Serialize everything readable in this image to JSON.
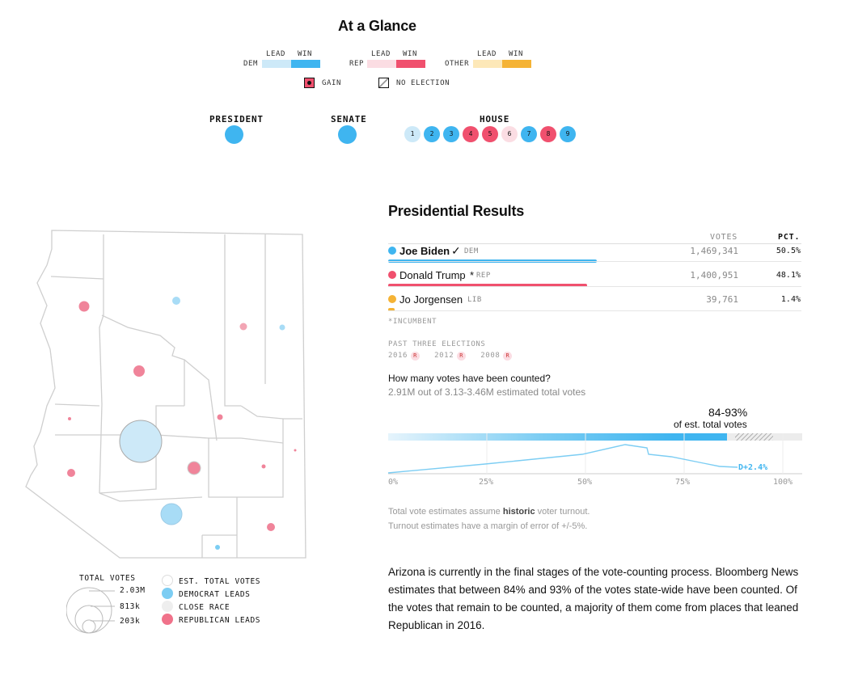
{
  "glance": {
    "title": "At a Glance",
    "legend": {
      "lead": "LEAD",
      "win": "WIN",
      "dem": "DEM",
      "rep": "REP",
      "other": "OTHER",
      "gain": "GAIN",
      "no_election": "NO ELECTION"
    },
    "races": {
      "president": "PRESIDENT",
      "senate": "SENATE",
      "house": "HOUSE"
    },
    "house_seats": [
      {
        "num": "1",
        "status": "dem-lead",
        "color": "#cde9f8"
      },
      {
        "num": "2",
        "status": "dem-win",
        "color": "#3fb5f0"
      },
      {
        "num": "3",
        "status": "dem-win",
        "color": "#3fb5f0"
      },
      {
        "num": "4",
        "status": "rep-win",
        "color": "#f0506e"
      },
      {
        "num": "5",
        "status": "rep-win",
        "color": "#f0506e"
      },
      {
        "num": "6",
        "status": "rep-lead",
        "color": "#fbdde3"
      },
      {
        "num": "7",
        "status": "dem-win",
        "color": "#3fb5f0"
      },
      {
        "num": "8",
        "status": "rep-win",
        "color": "#f0506e"
      },
      {
        "num": "9",
        "status": "dem-win",
        "color": "#3fb5f0"
      }
    ]
  },
  "colors": {
    "dem_lead": "#cde9f8",
    "dem_win": "#3fb5f0",
    "rep_lead": "#fbdde3",
    "rep_win": "#f0506e",
    "other_lead": "#fde8b8",
    "other_win": "#f5b335"
  },
  "results": {
    "title": "Presidential Results",
    "votes_header": "VOTES",
    "pct_header": "PCT.",
    "candidates": [
      {
        "name": "Joe Biden",
        "check": "✓",
        "party": "DEM",
        "votes": "1,469,341",
        "pct": "50.5%",
        "share": 0.505,
        "color": "#3fb5f0"
      },
      {
        "name": "Donald Trump",
        "incumbent_mark": "*",
        "party": "REP",
        "votes": "1,400,951",
        "pct": "48.1%",
        "share": 0.481,
        "color": "#f0506e"
      },
      {
        "name": "Jo Jorgensen",
        "party": "LIB",
        "votes": "39,761",
        "pct": "1.4%",
        "share": 0.014,
        "color": "#f5b335"
      }
    ],
    "incumbent_note": "*INCUMBENT",
    "past_label": "PAST THREE ELECTIONS",
    "past": [
      {
        "year": "2016",
        "winner": "R"
      },
      {
        "year": "2012",
        "winner": "R"
      },
      {
        "year": "2008",
        "winner": "R"
      }
    ]
  },
  "counted": {
    "question": "How many votes have been counted?",
    "summary": "2.91M out of 3.13-3.46M estimated total votes",
    "range_big": "84-93%",
    "range_small": "of est. total votes",
    "margin_label": "D+2.4%",
    "ticks": [
      "0%",
      "25%",
      "50%",
      "75%",
      "100%"
    ],
    "range_low": 0.84,
    "range_high": 0.93,
    "note1_pre": "Total vote estimates assume ",
    "note1_bold": "historic",
    "note1_post": " voter turnout.",
    "note2": "Turnout estimates have a margin of error of +/-5%."
  },
  "paragraph": "Arizona is currently in the final stages of the vote-counting process. Bloomberg News estimates that between 84% and 93% of the votes state-wide have been counted. Of the votes that remain to be counted, a majority of them come from places that leaned Republican in 2016.",
  "map_legend": {
    "total_votes": "TOTAL VOTES",
    "sizes": [
      "2.03M",
      "813k",
      "203k"
    ],
    "items": [
      {
        "label": "EST. TOTAL VOTES",
        "color": "#ffffff"
      },
      {
        "label": "DEMOCRAT LEADS",
        "color": "#7ccdf3"
      },
      {
        "label": "CLOSE RACE",
        "color": "#eeeeee"
      },
      {
        "label": "REPUBLICAN LEADS",
        "color": "#f0728a"
      }
    ]
  }
}
